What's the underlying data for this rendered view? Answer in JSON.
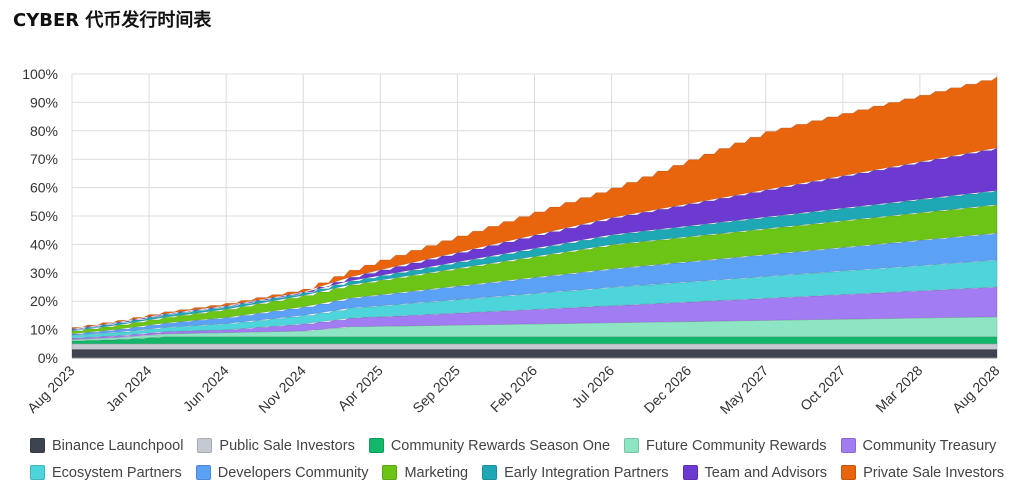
{
  "title": "CYBER 代币发行时间表",
  "chart_data": {
    "type": "area",
    "stacked": true,
    "ylim": [
      0,
      100
    ],
    "y_ticks": [
      "0%",
      "10%",
      "20%",
      "30%",
      "40%",
      "50%",
      "60%",
      "70%",
      "80%",
      "90%",
      "100%"
    ],
    "x_ticks": [
      "Aug 2023",
      "Jan 2024",
      "Jun 2024",
      "Nov 2024",
      "Apr 2025",
      "Sep 2025",
      "Feb 2026",
      "Jul 2026",
      "Dec 2026",
      "May 2027",
      "Oct 2027",
      "Mar 2028",
      "Aug 2028"
    ],
    "x_months": [
      0,
      5,
      10,
      15,
      20,
      25,
      30,
      35,
      40,
      45,
      50,
      55,
      60
    ],
    "series": [
      {
        "name": "Binance Launchpool",
        "color": "#3d4450",
        "points": [
          [
            0,
            3
          ],
          [
            60,
            3
          ]
        ]
      },
      {
        "name": "Public Sale Investors",
        "color": "#c5c9d0",
        "points": [
          [
            0,
            2
          ],
          [
            60,
            2
          ]
        ]
      },
      {
        "name": "Community Rewards Season One",
        "color": "#12b76a",
        "points": [
          [
            0,
            1
          ],
          [
            3,
            1.5
          ],
          [
            6,
            2.5
          ],
          [
            60,
            2.5
          ]
        ]
      },
      {
        "name": "Future Community Rewards",
        "color": "#8ee5c4",
        "points": [
          [
            0,
            0.5
          ],
          [
            6,
            1
          ],
          [
            15,
            2
          ],
          [
            18,
            3.5
          ],
          [
            60,
            7
          ]
        ]
      },
      {
        "name": "Community Treasury",
        "color": "#a27cf3",
        "points": [
          [
            0,
            0.5
          ],
          [
            10,
            1
          ],
          [
            15,
            2.5
          ],
          [
            35,
            6
          ],
          [
            60,
            10.5
          ]
        ]
      },
      {
        "name": "Ecosystem Partners",
        "color": "#4dd5db",
        "points": [
          [
            0,
            1
          ],
          [
            6,
            1.5
          ],
          [
            15,
            3
          ],
          [
            35,
            6.5
          ],
          [
            60,
            9.5
          ]
        ]
      },
      {
        "name": "Developers Community",
        "color": "#5ba2f7",
        "points": [
          [
            0,
            0.5
          ],
          [
            6,
            1.5
          ],
          [
            15,
            3
          ],
          [
            35,
            6.5
          ],
          [
            60,
            9.5
          ]
        ]
      },
      {
        "name": "Marketing",
        "color": "#6cc417",
        "points": [
          [
            0,
            1
          ],
          [
            6,
            2
          ],
          [
            15,
            4
          ],
          [
            35,
            8.5
          ],
          [
            60,
            10
          ]
        ]
      },
      {
        "name": "Early Integration Partners",
        "color": "#1ea7b4",
        "points": [
          [
            0,
            0.5
          ],
          [
            6,
            1
          ],
          [
            15,
            1
          ],
          [
            35,
            3.5
          ],
          [
            60,
            5
          ]
        ]
      },
      {
        "name": "Team and Advisors",
        "color": "#6c3ad1",
        "points": [
          [
            0,
            0.3
          ],
          [
            15,
            0.3
          ],
          [
            20,
            2
          ],
          [
            35,
            6
          ],
          [
            60,
            15
          ]
        ]
      },
      {
        "name": "Private Sale Investors",
        "color": "#e8650d",
        "points": [
          [
            0,
            0.5
          ],
          [
            15,
            1
          ],
          [
            20,
            3.5
          ],
          [
            35,
            10.5
          ],
          [
            45,
            20.5
          ],
          [
            60,
            25
          ]
        ]
      }
    ]
  }
}
